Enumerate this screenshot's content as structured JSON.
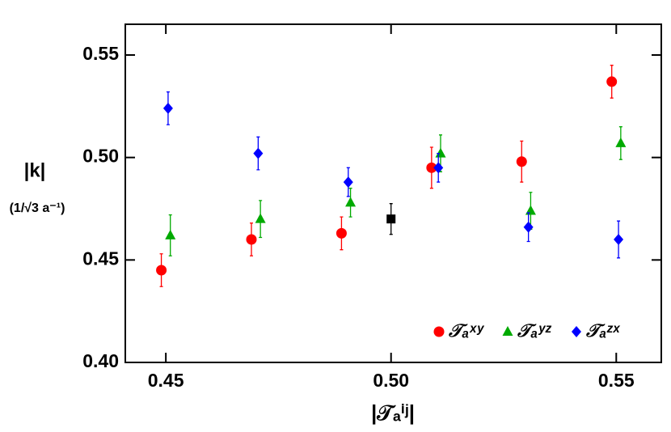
{
  "chart_data": {
    "type": "scatter",
    "xlabel": "|𝒯ₐⁱʲ|",
    "ylabel": "|k|",
    "ylabel_unit": "(1/√3 a⁻¹)",
    "xlim": [
      0.441,
      0.56
    ],
    "ylim": [
      0.4,
      0.565
    ],
    "xticks": [
      {
        "value": 0.45,
        "label": "0.45"
      },
      {
        "value": 0.5,
        "label": "0.50"
      },
      {
        "value": 0.55,
        "label": "0.55"
      }
    ],
    "yticks": [
      {
        "value": 0.4,
        "label": "0.40"
      },
      {
        "value": 0.45,
        "label": "0.45"
      },
      {
        "value": 0.5,
        "label": "0.50"
      },
      {
        "value": 0.55,
        "label": "0.55"
      }
    ],
    "legend": "lower right",
    "series": [
      {
        "name": "𝒯ₐˣʸ",
        "color": "#ff0000",
        "marker": "circle",
        "x": [
          0.449,
          0.469,
          0.489,
          0.509,
          0.529,
          0.549
        ],
        "values": [
          0.445,
          0.46,
          0.463,
          0.495,
          0.498,
          0.537
        ],
        "errors": [
          0.008,
          0.008,
          0.008,
          0.01,
          0.01,
          0.008
        ]
      },
      {
        "name": "𝒯ₐʸᶻ",
        "color": "#00aa00",
        "marker": "triangle",
        "x": [
          0.451,
          0.471,
          0.491,
          0.511,
          0.531,
          0.551
        ],
        "values": [
          0.462,
          0.47,
          0.478,
          0.502,
          0.474,
          0.507
        ],
        "errors": [
          0.01,
          0.009,
          0.007,
          0.009,
          0.009,
          0.008
        ]
      },
      {
        "name": "𝒯ₐᶻˣ",
        "color": "#0000ff",
        "marker": "diamond",
        "x": [
          0.4505,
          0.4705,
          0.4905,
          0.5105,
          0.5305,
          0.5505
        ],
        "values": [
          0.524,
          0.502,
          0.488,
          0.495,
          0.466,
          0.46
        ],
        "errors": [
          0.008,
          0.008,
          0.007,
          0.007,
          0.007,
          0.009
        ]
      },
      {
        "color": "#000000",
        "marker": "square",
        "x": [
          0.5
        ],
        "values": [
          0.47
        ],
        "errors": [
          0.0075
        ]
      }
    ]
  }
}
